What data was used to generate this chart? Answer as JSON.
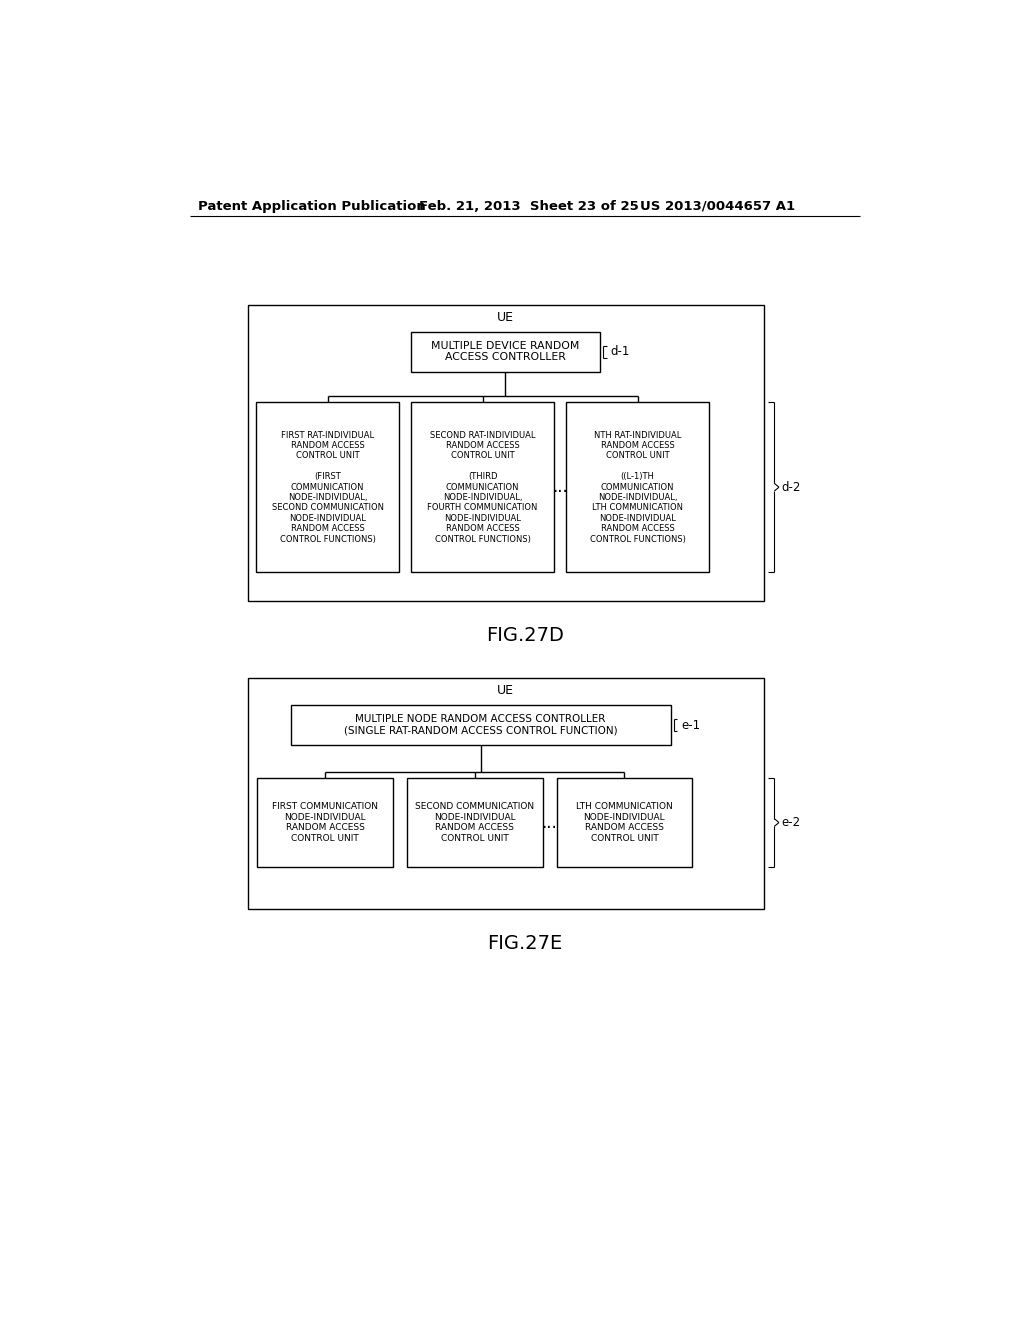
{
  "bg_color": "#ffffff",
  "header_left": "Patent Application Publication",
  "header_mid": "Feb. 21, 2013  Sheet 23 of 25",
  "header_right": "US 2013/0044657 A1",
  "fig27d_label": "FIG.27D",
  "fig27e_label": "FIG.27E",
  "diag_d": {
    "outer_label": "UE",
    "top_box_text": "MULTIPLE DEVICE RANDOM\nACCESS CONTROLLER",
    "top_label": "d-1",
    "brace_label": "d-2",
    "boxes": [
      "FIRST RAT-INDIVIDUAL\nRANDOM ACCESS\nCONTROL UNIT\n\n(FIRST\nCOMMUNICATION\nNODE-INDIVIDUAL,\nSECOND COMMUNICATION\nNODE-INDIVIDUAL\nRANDOM ACCESS\nCONTROL FUNCTIONS)",
      "SECOND RAT-INDIVIDUAL\nRANDOM ACCESS\nCONTROL UNIT\n\n(THIRD\nCOMMUNICATION\nNODE-INDIVIDUAL,\nFOURTH COMMUNICATION\nNODE-INDIVIDUAL\nRANDOM ACCESS\nCONTROL FUNCTIONS)",
      "NTH RAT-INDIVIDUAL\nRANDOM ACCESS\nCONTROL UNIT\n\n((L-1)TH\nCOMMUNICATION\nNODE-INDIVIDUAL,\nLTH COMMUNICATION\nNODE-INDIVIDUAL\nRANDOM ACCESS\nCONTROL FUNCTIONS)"
    ]
  },
  "diag_e": {
    "outer_label": "UE",
    "top_box_text": "MULTIPLE NODE RANDOM ACCESS CONTROLLER\n(SINGLE RAT-RANDOM ACCESS CONTROL FUNCTION)",
    "top_label": "e-1",
    "brace_label": "e-2",
    "boxes": [
      "FIRST COMMUNICATION\nNODE-INDIVIDUAL\nRANDOM ACCESS\nCONTROL UNIT",
      "SECOND COMMUNICATION\nNODE-INDIVIDUAL\nRANDOM ACCESS\nCONTROL UNIT",
      "LTH COMMUNICATION\nNODE-INDIVIDUAL\nRANDOM ACCESS\nCONTROL UNIT"
    ]
  }
}
